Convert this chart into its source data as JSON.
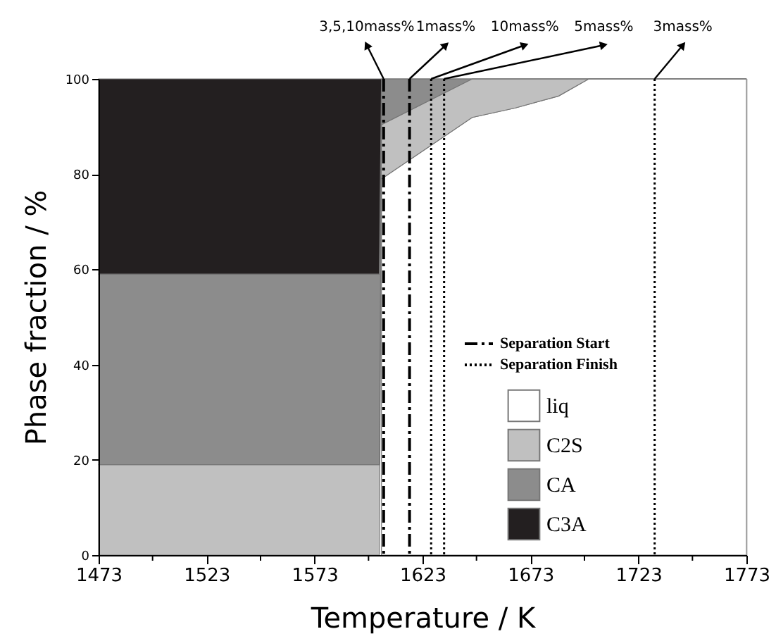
{
  "chart_data": {
    "type": "area",
    "stacked": true,
    "xlabel": "Temperature / K",
    "ylabel": "Phase fraction / %",
    "x": [
      1473,
      1603,
      1604,
      1646,
      1666,
      1686,
      1700,
      1773
    ],
    "series": [
      {
        "name": "liq",
        "color": "#ffffff",
        "values": [
          null,
          null,
          79,
          91.9,
          93.9,
          96.4,
          100,
          100
        ]
      },
      {
        "name": "C2S",
        "color": "#c0c0c0",
        "values": [
          19,
          19,
          11.4,
          8.1,
          6.1,
          3.6,
          0,
          0
        ]
      },
      {
        "name": "CA",
        "color": "#8c8c8c",
        "values": [
          40,
          40,
          9.6,
          0,
          0,
          0,
          0,
          0
        ]
      },
      {
        "name": "C3A",
        "color": "#231f20",
        "values": [
          41,
          41,
          0,
          0,
          0,
          0,
          0,
          0
        ]
      }
    ],
    "xlim": [
      1473,
      1773
    ],
    "xticks": [
      1473,
      {
        "value": 1498,
        "label": null
      },
      1523,
      {
        "value": 1548,
        "label": null
      },
      1573,
      {
        "value": 1598,
        "label": null
      },
      1623,
      {
        "value": 1648,
        "label": null
      },
      1673,
      {
        "value": 1698,
        "label": null
      },
      1723,
      {
        "value": 1748,
        "label": null
      },
      1773
    ],
    "ylim": [
      0,
      100
    ],
    "yticks": [
      0,
      20,
      40,
      60,
      80,
      100
    ],
    "ref_lines": [
      {
        "axis": "x",
        "value": 1605,
        "label": "3,5,10mass%",
        "line_style": "dashed",
        "color": "#000000"
      },
      {
        "axis": "x",
        "value": 1617,
        "label": "1mass%",
        "line_style": "dashed",
        "color": "#000000"
      },
      {
        "axis": "x",
        "value": 1627,
        "label": "10mass%",
        "line_style": "dotted",
        "color": "#000000"
      },
      {
        "axis": "x",
        "value": 1633,
        "label": "5mass%",
        "line_style": "dotted",
        "color": "#000000"
      },
      {
        "axis": "x",
        "value": 1730.5,
        "label": "3mass%",
        "line_style": "dotted",
        "color": "#000000"
      }
    ],
    "annotations": [
      "Separation Start",
      "Separation Finish"
    ],
    "legend": "bottom right",
    "grid": false
  }
}
